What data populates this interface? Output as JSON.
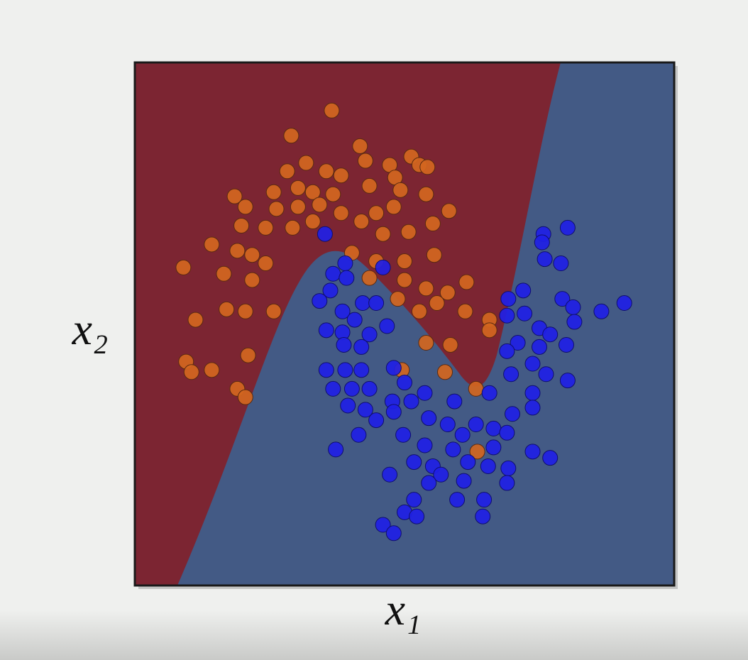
{
  "chart_data": {
    "type": "scatter",
    "x_label": "x₁",
    "y_label": "x₂",
    "xlim": [
      -1.5,
      2.5
    ],
    "ylim": [
      -1.0,
      1.5
    ],
    "series": [
      {
        "color": "#d2661f",
        "x": [
          -0.04,
          -0.34,
          0.17,
          0.21,
          0.55,
          0.61,
          0.67,
          0.39,
          -0.23,
          -0.37,
          -0.08,
          0.03,
          0.24,
          0.43,
          0.47,
          0.66,
          -0.76,
          -0.68,
          -0.47,
          -0.29,
          -0.18,
          -0.03,
          -0.45,
          -0.29,
          -0.13,
          0.03,
          0.29,
          0.42,
          0.83,
          -0.71,
          -0.53,
          -0.33,
          -0.18,
          0.18,
          0.34,
          0.53,
          0.71,
          -0.93,
          -0.74,
          -0.63,
          0.11,
          0.29,
          0.5,
          0.72,
          -1.14,
          -0.84,
          -0.63,
          -0.53,
          0.24,
          0.5,
          0.66,
          0.82,
          0.96,
          -0.82,
          -0.68,
          -0.47,
          -1.05,
          0.45,
          0.61,
          0.74,
          0.95,
          1.13,
          0.66,
          0.84,
          1.13,
          -0.66,
          -1.12,
          -0.93,
          -1.08,
          0.48,
          0.8,
          -0.74,
          -0.68,
          1.03,
          1.04
        ],
        "y": [
          1.27,
          1.15,
          1.1,
          1.03,
          1.05,
          1.01,
          1.0,
          1.01,
          1.02,
          0.98,
          0.98,
          0.96,
          0.91,
          0.95,
          0.89,
          0.87,
          0.86,
          0.81,
          0.88,
          0.9,
          0.88,
          0.87,
          0.8,
          0.81,
          0.82,
          0.78,
          0.78,
          0.81,
          0.79,
          0.72,
          0.71,
          0.71,
          0.74,
          0.74,
          0.68,
          0.69,
          0.73,
          0.63,
          0.6,
          0.58,
          0.59,
          0.55,
          0.55,
          0.58,
          0.52,
          0.49,
          0.46,
          0.54,
          0.47,
          0.46,
          0.42,
          0.4,
          0.45,
          0.32,
          0.31,
          0.31,
          0.27,
          0.37,
          0.31,
          0.35,
          0.31,
          0.27,
          0.16,
          0.15,
          0.22,
          0.1,
          0.07,
          0.03,
          0.02,
          0.03,
          0.02,
          -0.06,
          -0.1,
          -0.06,
          -0.36
        ]
      },
      {
        "color": "#2020e6",
        "x": [
          -0.09,
          1.53,
          1.71,
          1.52,
          0.06,
          0.34,
          1.54,
          1.66,
          -0.03,
          0.07,
          -0.05,
          1.38,
          1.27,
          1.67,
          -0.13,
          0.19,
          0.29,
          2.13,
          1.96,
          1.75,
          1.39,
          0.04,
          0.13,
          1.26,
          1.76,
          1.5,
          -0.08,
          0.04,
          0.37,
          0.24,
          1.58,
          1.34,
          0.05,
          0.18,
          1.7,
          1.26,
          1.5,
          -0.08,
          0.06,
          0.18,
          0.42,
          1.45,
          1.55,
          1.71,
          1.29,
          -0.03,
          0.11,
          0.24,
          0.5,
          0.65,
          0.87,
          1.13,
          1.45,
          0.08,
          0.21,
          0.41,
          0.55,
          1.45,
          1.3,
          0.29,
          0.42,
          0.68,
          0.82,
          1.03,
          0.16,
          0.49,
          0.93,
          1.16,
          1.26,
          -0.01,
          0.65,
          0.86,
          1.16,
          1.45,
          1.58,
          0.57,
          0.71,
          0.97,
          1.12,
          1.27,
          0.39,
          0.77,
          0.94,
          1.26,
          0.68,
          0.89,
          1.09,
          0.57,
          0.5,
          0.59,
          1.08,
          0.34,
          0.42
        ],
        "y": [
          0.68,
          0.68,
          0.71,
          0.64,
          0.54,
          0.52,
          0.56,
          0.54,
          0.49,
          0.47,
          0.41,
          0.41,
          0.37,
          0.37,
          0.36,
          0.35,
          0.35,
          0.35,
          0.31,
          0.33,
          0.3,
          0.31,
          0.27,
          0.29,
          0.26,
          0.23,
          0.22,
          0.21,
          0.24,
          0.2,
          0.2,
          0.16,
          0.15,
          0.14,
          0.15,
          0.12,
          0.14,
          0.03,
          0.03,
          0.03,
          0.04,
          0.06,
          0.01,
          -0.02,
          0.01,
          -0.06,
          -0.06,
          -0.06,
          -0.03,
          -0.08,
          -0.12,
          -0.08,
          -0.08,
          -0.14,
          -0.16,
          -0.12,
          -0.12,
          -0.15,
          -0.18,
          -0.21,
          -0.17,
          -0.2,
          -0.23,
          -0.23,
          -0.28,
          -0.28,
          -0.28,
          -0.25,
          -0.27,
          -0.35,
          -0.33,
          -0.35,
          -0.34,
          -0.36,
          -0.39,
          -0.41,
          -0.43,
          -0.41,
          -0.43,
          -0.44,
          -0.47,
          -0.47,
          -0.5,
          -0.51,
          -0.51,
          -0.59,
          -0.59,
          -0.59,
          -0.65,
          -0.67,
          -0.67,
          -0.71,
          -0.75
        ]
      }
    ]
  }
}
